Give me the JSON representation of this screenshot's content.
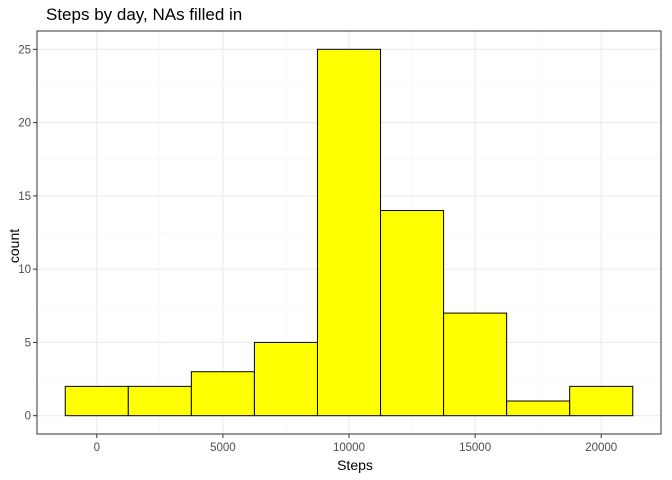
{
  "chart_data": {
    "type": "bar",
    "title": "Steps by day, NAs filled in",
    "xlabel": "Steps",
    "ylabel": "count",
    "bins": [
      {
        "start": -1250,
        "end": 1250,
        "count": 2
      },
      {
        "start": 1250,
        "end": 3750,
        "count": 2
      },
      {
        "start": 3750,
        "end": 6250,
        "count": 3
      },
      {
        "start": 6250,
        "end": 8750,
        "count": 5
      },
      {
        "start": 8750,
        "end": 11250,
        "count": 25
      },
      {
        "start": 11250,
        "end": 13750,
        "count": 14
      },
      {
        "start": 13750,
        "end": 16250,
        "count": 7
      },
      {
        "start": 16250,
        "end": 18750,
        "count": 1
      },
      {
        "start": 18750,
        "end": 21250,
        "count": 2
      }
    ],
    "xlim": [
      -2370,
      22370
    ],
    "ylim": [
      -1.25,
      26.25
    ],
    "x_ticks": [
      0,
      5000,
      10000,
      15000,
      20000
    ],
    "x_tick_labels": [
      "0",
      "5000",
      "10000",
      "15000",
      "20000"
    ],
    "y_ticks": [
      0,
      5,
      10,
      15,
      20,
      25
    ],
    "y_tick_labels": [
      "0",
      "5",
      "10",
      "15",
      "20",
      "25"
    ],
    "grid": true,
    "colors": {
      "bar_fill": "#FFFF00",
      "bar_stroke": "#000000",
      "grid_major": "#EBEBEB",
      "grid_minor": "#F5F5F5",
      "panel_border": "#333333",
      "tick_text": "#4D4D4D"
    }
  }
}
